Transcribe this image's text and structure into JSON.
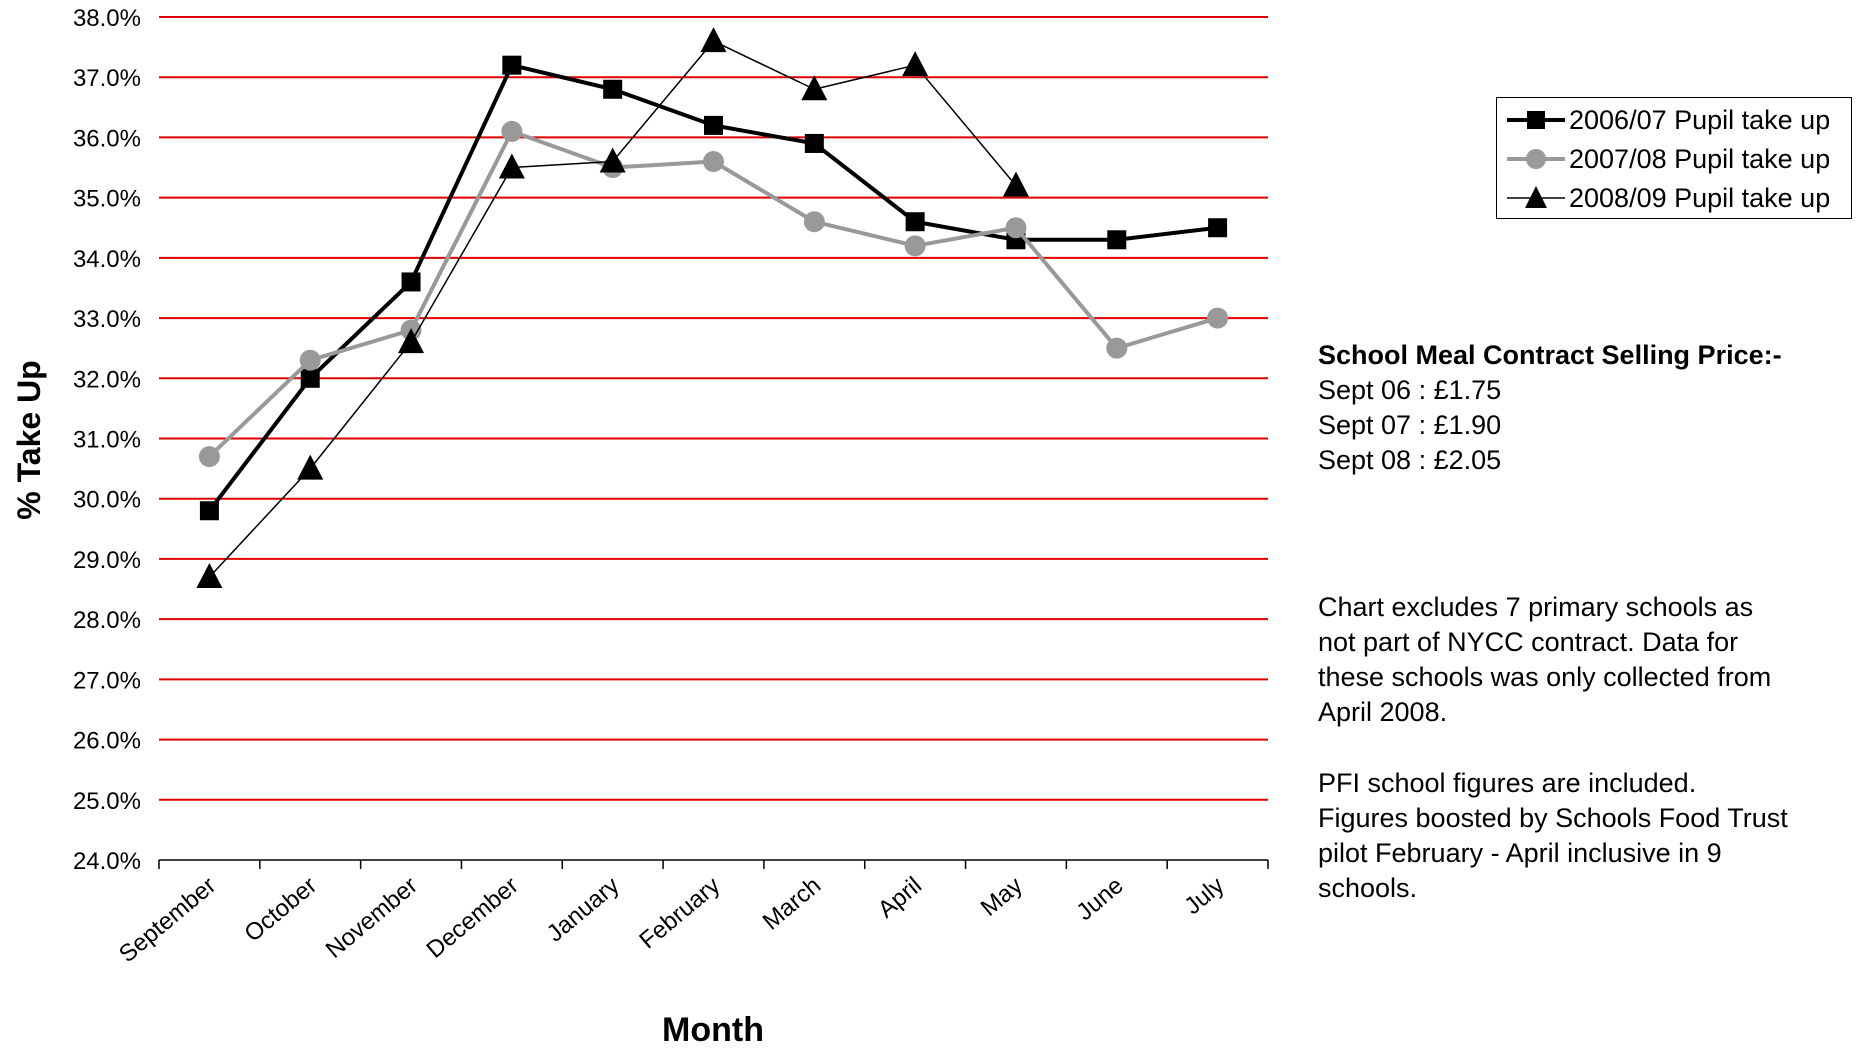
{
  "chart_data": {
    "type": "line",
    "title": "",
    "xlabel": "Month",
    "ylabel": "% Take Up",
    "categories": [
      "September",
      "October",
      "November",
      "December",
      "January",
      "February",
      "March",
      "April",
      "May",
      "June",
      "July"
    ],
    "ylim": [
      24.0,
      38.0
    ],
    "y_tick_labels": [
      "24.0%",
      "25.0%",
      "26.0%",
      "27.0%",
      "28.0%",
      "29.0%",
      "30.0%",
      "31.0%",
      "32.0%",
      "33.0%",
      "34.0%",
      "35.0%",
      "36.0%",
      "37.0%",
      "38.0%"
    ],
    "grid": "horizontal",
    "grid_color": "#e00000",
    "legend_position": "top-right",
    "series": [
      {
        "name": "2006/07 Pupil take up",
        "color": "#000000",
        "marker": "square",
        "line_width": 4,
        "values": [
          29.8,
          32.0,
          33.6,
          37.2,
          36.8,
          36.2,
          35.9,
          34.6,
          34.3,
          34.3,
          34.5
        ]
      },
      {
        "name": "2007/08 Pupil take up",
        "color": "#999999",
        "marker": "circle",
        "line_width": 4,
        "values": [
          30.7,
          32.3,
          32.8,
          36.1,
          35.5,
          35.6,
          34.6,
          34.2,
          34.5,
          32.5,
          33.0
        ]
      },
      {
        "name": "2008/09 Pupil take up",
        "color": "#000000",
        "marker": "triangle",
        "line_width": 1.5,
        "values": [
          28.7,
          30.5,
          32.6,
          35.5,
          35.6,
          37.6,
          36.8,
          37.2,
          35.2,
          null,
          null
        ]
      }
    ]
  },
  "notes": {
    "price_title": "School Meal Contract Selling Price:-",
    "price_lines": [
      "Sept 06 :  £1.75",
      "Sept 07 :  £1.90",
      "Sept 08 :  £2.05"
    ],
    "paragraph1": [
      "Chart excludes 7 primary schools as",
      "not part of NYCC contract.  Data for",
      "these schools was only collected from",
      "April 2008."
    ],
    "paragraph2": [
      "PFI school figures are included.",
      "Figures boosted by Schools Food Trust",
      "pilot February - April inclusive in 9",
      "schools."
    ]
  }
}
